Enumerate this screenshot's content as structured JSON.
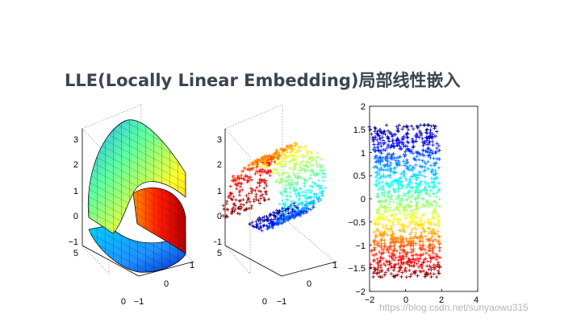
{
  "slide": {
    "title": "LLE(Locally Linear Embedding)局部线性嵌入",
    "watermark": "https://blog.csdn.net/sunyaowu315"
  },
  "colors": {
    "title": "#3a4550",
    "jet_dark_blue": "#00008f",
    "jet_dark_red": "#800000"
  },
  "chart_data": [
    {
      "type": "surface",
      "z_ticks": [
        "3",
        "2",
        "1",
        "0",
        "−1"
      ],
      "y_ticks": [
        "5",
        "0"
      ],
      "x_ticks": [
        "−1",
        "0",
        "1"
      ]
    },
    {
      "type": "scatter",
      "z_ticks": [
        "3",
        "2",
        "1",
        "0",
        "−1"
      ],
      "y_ticks": [
        "5",
        "0"
      ],
      "x_ticks": [
        "−1",
        "0",
        "1"
      ]
    },
    {
      "type": "scatter",
      "y_ticks": [
        "2",
        "1.5",
        "1",
        "0.5",
        "0",
        "−0.5",
        "−1",
        "−1.5",
        "−2"
      ],
      "x_ticks": [
        "−2",
        "0",
        "2",
        "4"
      ],
      "xlim": [
        -2,
        4
      ],
      "ylim": [
        -2,
        2
      ]
    }
  ]
}
